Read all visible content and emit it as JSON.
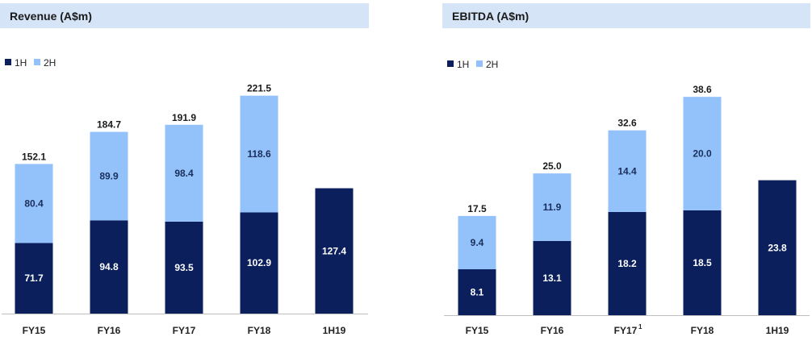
{
  "colors": {
    "first_half": "#0b1f5c",
    "second_half": "#93c2fb",
    "header_bg": "#d6e4f7",
    "axis": "#bfbfbf"
  },
  "chart_data": [
    {
      "type": "bar",
      "stacked": true,
      "title": "Revenue (A$m)",
      "legend": [
        "1H",
        "2H"
      ],
      "legend_position": "top-left",
      "categories": [
        "FY15",
        "FY16",
        "FY17",
        "FY18",
        "1H19"
      ],
      "category_superscripts": [
        "",
        "",
        "",
        "",
        ""
      ],
      "series": [
        {
          "name": "1H",
          "values": [
            71.7,
            94.8,
            93.5,
            102.9,
            127.4
          ]
        },
        {
          "name": "2H",
          "values": [
            80.4,
            89.9,
            98.4,
            118.6,
            null
          ]
        }
      ],
      "totals": [
        "152.1",
        "184.7",
        "191.9",
        "221.5",
        ""
      ],
      "ylim": [
        0,
        245
      ]
    },
    {
      "type": "bar",
      "stacked": true,
      "title": "EBITDA (A$m)",
      "legend": [
        "1H",
        "2H"
      ],
      "legend_position": "top-left",
      "categories": [
        "FY15",
        "FY16",
        "FY17",
        "FY18",
        "1H19"
      ],
      "category_superscripts": [
        "",
        "",
        "1",
        "",
        ""
      ],
      "series": [
        {
          "name": "1H",
          "values": [
            8.1,
            13.1,
            18.2,
            18.5,
            23.8
          ]
        },
        {
          "name": "2H",
          "values": [
            9.4,
            11.9,
            14.4,
            20.0,
            null
          ]
        }
      ],
      "totals": [
        "17.5",
        "25.0",
        "32.6",
        "38.6",
        ""
      ],
      "ylim": [
        0,
        42.5
      ]
    }
  ]
}
